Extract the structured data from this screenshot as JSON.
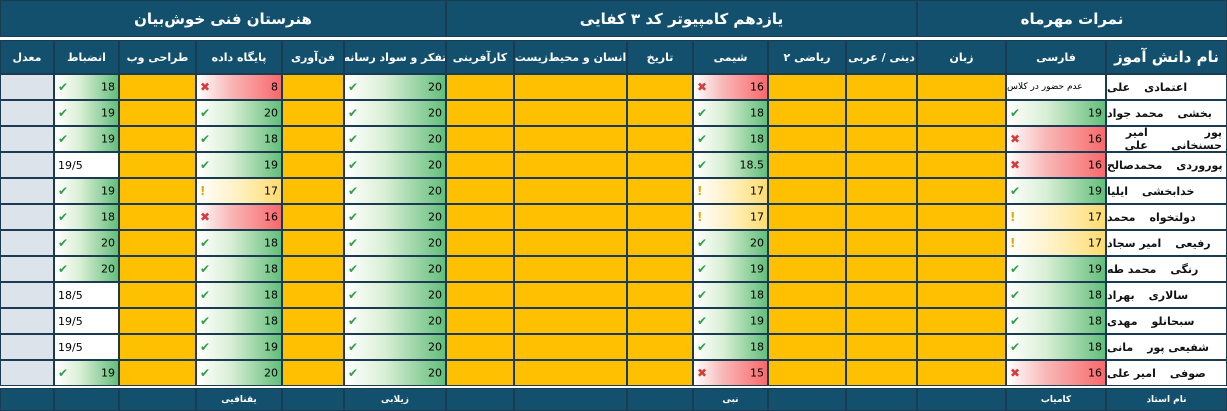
{
  "groups": {
    "school": "هنرستان فنی خوش‌بیان",
    "klass": "یازدهم کامپیوتر کد ۳ کفایی",
    "title": "نمرات مهرماه"
  },
  "columns": {
    "student": "نام دانش آموز",
    "farsi": "فارسی",
    "zaban": "زبان",
    "dini": "دینی / عربی",
    "riazi": "ریاضی ۲",
    "shimi": "شیمی",
    "tarikh": "تاریخ",
    "ensan": "انسان  و محیط‌زیست",
    "karafarini": "کارآفرینی",
    "tafakor": "تفکر و سواد رسانه",
    "fanavari": "فن‌آوری",
    "paygah": "پایگاه داده",
    "tarahi": "طراحی وب",
    "enzebat": "انضباط",
    "moadel": "معدل"
  },
  "footer": {
    "teacher_label": "نام استاد",
    "farsi_teacher": "کامیاب",
    "shimi_teacher": "نبی",
    "tafakor_teacher": "زیلابی",
    "paygah_teacher": "یقنافیی"
  },
  "students": [
    {
      "first": "علی",
      "last": "اعتمادی",
      "farsi_note": "عدم حضور در کلاس",
      "shimi": "16",
      "tafakor": "20",
      "paygah": "8",
      "enzebat": "18"
    },
    {
      "first": "محمد جواد",
      "last": "بخشی",
      "farsi": "19",
      "shimi": "18",
      "tafakor": "20",
      "paygah": "20",
      "enzebat": "19"
    },
    {
      "first": "امیر علی",
      "last": "پور حسنخانی",
      "farsi": "16",
      "shimi": "18",
      "tafakor": "20",
      "paygah": "18",
      "enzebat": "19"
    },
    {
      "first": "محمدصالح",
      "last": "پوروردی",
      "farsi": "16",
      "shimi": "18.5",
      "tafakor": "20",
      "paygah": "19",
      "enzebat": "19/5"
    },
    {
      "first": "ایلیا",
      "last": "خدابخشی",
      "farsi": "19",
      "shimi": "17",
      "tafakor": "20",
      "paygah": "17",
      "enzebat": "19"
    },
    {
      "first": "محمد",
      "last": "دولتخواه",
      "farsi": "17",
      "shimi": "17",
      "tafakor": "20",
      "paygah": "16",
      "enzebat": "18"
    },
    {
      "first": "امیر سجاد",
      "last": "رفیعی",
      "farsi": "17",
      "shimi": "20",
      "tafakor": "20",
      "paygah": "18",
      "enzebat": "20"
    },
    {
      "first": "محمد طه",
      "last": "رنگی",
      "farsi": "19",
      "shimi": "19",
      "tafakor": "20",
      "paygah": "18",
      "enzebat": "20"
    },
    {
      "first": "بهراد",
      "last": "سالاری",
      "farsi": "18",
      "shimi": "18",
      "tafakor": "20",
      "paygah": "18",
      "enzebat": "18/5"
    },
    {
      "first": "مهدی",
      "last": "سبحانلو",
      "farsi": "18",
      "shimi": "19",
      "tafakor": "20",
      "paygah": "18",
      "enzebat": "19/5"
    },
    {
      "first": "مانی",
      "last": "شفیعی پور",
      "farsi": "18",
      "shimi": "18",
      "tafakor": "20",
      "paygah": "19",
      "enzebat": "19/5"
    },
    {
      "first": "امیر علی",
      "last": "صوفی",
      "farsi": "16",
      "shimi": "15",
      "tafakor": "20",
      "paygah": "20",
      "enzebat": "19"
    }
  ],
  "colors": {
    "header": "#12506e",
    "empty_cell": "#fec000",
    "average_cell": "#dde3ea",
    "good": "#63be7b",
    "bad": "#f8696b",
    "medium": "#ffdc70"
  }
}
